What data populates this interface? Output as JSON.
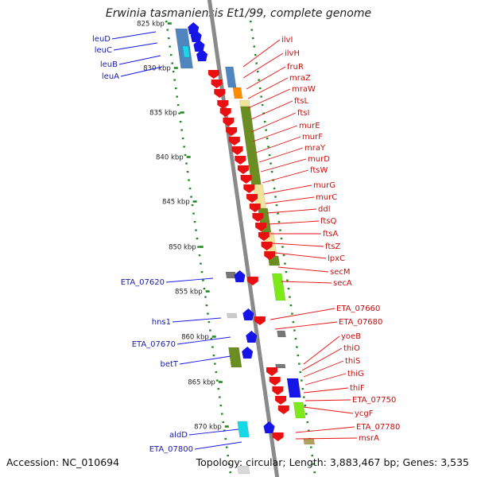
{
  "title": "Erwinia tasmaniensis Et1/99, complete genome",
  "accession": "Accession: NC_010694",
  "summary": "Topology: circular; Length: 3,883,467 bp; Genes: 3,535",
  "kbp_labels": [
    "825 kbp",
    "830 kbp",
    "835 kbp",
    "840 kbp",
    "845 kbp",
    "850 kbp",
    "855 kbp",
    "860 kbp",
    "865 kbp",
    "870 kbp"
  ],
  "left_genes": [
    "leuD",
    "leuC",
    "leuB",
    "leuA",
    "ETA_07620",
    "hns1",
    "ETA_07670",
    "betT",
    "aldD",
    "ETA_07800"
  ],
  "right_genes": [
    "ilvI",
    "ilvH",
    "fruR",
    "mraZ",
    "mraW",
    "ftsL",
    "ftsI",
    "murE",
    "murF",
    "mraY",
    "murD",
    "ftsW",
    "murG",
    "murC",
    "ddl",
    "ftsQ",
    "ftsA",
    "ftsZ",
    "lpxC",
    "secM",
    "secA",
    "ETA_07660",
    "ETA_07680",
    "yoeB",
    "thiO",
    "thiS",
    "thiG",
    "thiF",
    "ETA_07750",
    "ycgF",
    "ETA_07780",
    "msrA"
  ],
  "colors": {
    "forward": "#1515e8",
    "reverse": "#e81010",
    "left_label": "#1a1aaa",
    "right_label": "#c41010",
    "backbone": "#8a8a8a",
    "tick": "#1f8a1f",
    "olive": "#6b8e23",
    "khaki": "#efe59a",
    "steelblue": "#4f86c0",
    "orange": "#ff8c00",
    "cyan": "#18d8e8",
    "lime": "#7de81a",
    "gray": "#777777"
  }
}
